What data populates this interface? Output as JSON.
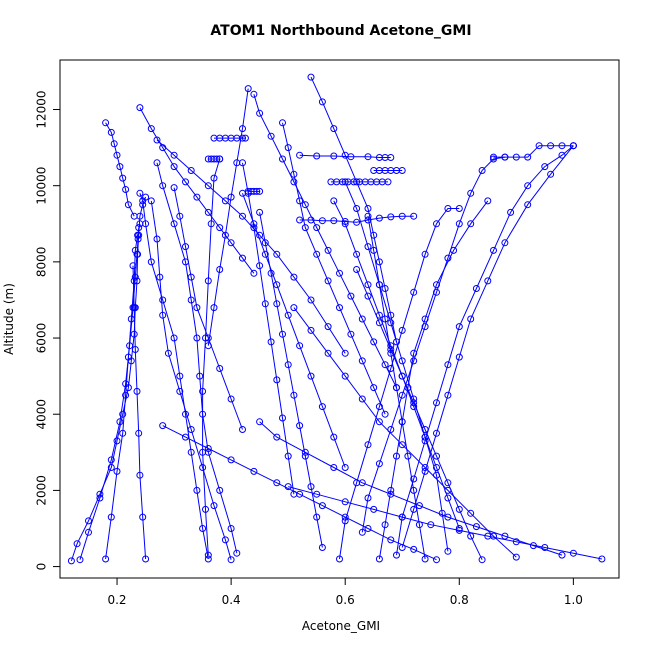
{
  "chart_data": {
    "type": "line",
    "title": "ATOM1 Northbound Acetone_GMI",
    "xlabel": "Acetone_GMI",
    "ylabel": "Altitude (m)",
    "xlim": [
      0.1,
      1.08
    ],
    "ylim": [
      -300,
      13300
    ],
    "x_ticks": [
      "0.2",
      "0.4",
      "0.6",
      "0.8",
      "1.0"
    ],
    "x_tick_values": [
      0.2,
      0.4,
      0.6,
      0.8,
      1.0
    ],
    "y_ticks": [
      "0",
      "2000",
      "4000",
      "6000",
      "8000",
      "10000",
      "12000"
    ],
    "y_tick_values": [
      0,
      2000,
      4000,
      6000,
      8000,
      10000,
      12000
    ],
    "line_color": "#0000ff",
    "marker": "open-circle",
    "grid": false,
    "legend": "none",
    "series": [
      {
        "x": [
          0.12,
          0.13,
          0.15,
          0.17,
          0.19,
          0.2,
          0.21,
          0.22,
          0.225,
          0.23,
          0.232,
          0.235,
          0.236,
          0.238,
          0.24,
          0.245,
          0.25
        ],
        "y": [
          150,
          600,
          1200,
          1900,
          2600,
          3300,
          4000,
          4700,
          5400,
          6100,
          6800,
          7500,
          8200,
          8700,
          9200,
          9500,
          9700
        ]
      },
      {
        "x": [
          0.135,
          0.15,
          0.17,
          0.19,
          0.205,
          0.215,
          0.222,
          0.228,
          0.232,
          0.235,
          0.237,
          0.238
        ],
        "y": [
          180,
          900,
          1800,
          2800,
          3800,
          4800,
          5800,
          6800,
          7600,
          8200,
          8600,
          8900
        ]
      },
      {
        "x": [
          0.18,
          0.19,
          0.2,
          0.21,
          0.215,
          0.22,
          0.225,
          0.23,
          0.232,
          0.236,
          0.24
        ],
        "y": [
          200,
          1300,
          2500,
          3500,
          4500,
          5500,
          6500,
          7500,
          8300,
          8700,
          9000
        ]
      },
      {
        "x": [
          0.18,
          0.19,
          0.195,
          0.2,
          0.205,
          0.21,
          0.215,
          0.22,
          0.23
        ],
        "y": [
          11650,
          11400,
          11100,
          10800,
          10500,
          10200,
          9900,
          9500,
          9200
        ]
      },
      {
        "x": [
          0.25,
          0.245,
          0.24,
          0.238,
          0.235,
          0.232,
          0.23,
          0.228
        ],
        "y": [
          200,
          1300,
          2400,
          3500,
          4600,
          5700,
          6800,
          7900
        ]
      },
      {
        "x": [
          0.36,
          0.35,
          0.34,
          0.33,
          0.32,
          0.31,
          0.3,
          0.28,
          0.26,
          0.25,
          0.245,
          0.24
        ],
        "y": [
          200,
          1000,
          2000,
          3000,
          4000,
          5000,
          6000,
          7000,
          8000,
          9000,
          9600,
          9800
        ]
      },
      {
        "x": [
          0.4,
          0.39,
          0.37,
          0.35,
          0.33,
          0.31,
          0.29,
          0.28,
          0.275,
          0.27,
          0.26
        ],
        "y": [
          180,
          700,
          1600,
          2600,
          3600,
          4600,
          5600,
          6600,
          7600,
          8600,
          9600
        ]
      },
      {
        "x": [
          0.41,
          0.4,
          0.38,
          0.36,
          0.35,
          0.345,
          0.34,
          0.33,
          0.32,
          0.3,
          0.28,
          0.27
        ],
        "y": [
          350,
          1000,
          2000,
          3000,
          4000,
          5000,
          6000,
          7000,
          8000,
          9000,
          10000,
          10600
        ]
      },
      {
        "x": [
          0.36,
          0.355,
          0.35,
          0.35,
          0.355,
          0.36,
          0.365,
          0.37,
          0.38
        ],
        "y": [
          300,
          1500,
          3000,
          4600,
          6000,
          7500,
          9000,
          10200,
          10700
        ]
      },
      {
        "x": [
          0.24,
          0.26,
          0.28,
          0.3,
          0.32,
          0.34,
          0.36,
          0.38,
          0.4,
          0.42,
          0.44
        ],
        "y": [
          12050,
          11500,
          11000,
          10500,
          10100,
          9700,
          9300,
          8900,
          8500,
          8100,
          7700
        ]
      },
      {
        "x": [
          0.27,
          0.3,
          0.33,
          0.36,
          0.39,
          0.42,
          0.45,
          0.48,
          0.51,
          0.54,
          0.57,
          0.6
        ],
        "y": [
          11200,
          10800,
          10400,
          10000,
          9600,
          9200,
          8700,
          8200,
          7600,
          7000,
          6300,
          5600
        ]
      },
      {
        "x": [
          0.43,
          0.42,
          0.41,
          0.4,
          0.39,
          0.38,
          0.37,
          0.36
        ],
        "y": [
          12550,
          11500,
          10600,
          9700,
          8700,
          7800,
          6800,
          5800
        ]
      },
      {
        "x": [
          0.44,
          0.45,
          0.47,
          0.49,
          0.51,
          0.53,
          0.55,
          0.57,
          0.59,
          0.61,
          0.63,
          0.65,
          0.67,
          0.69
        ],
        "y": [
          12400,
          11900,
          11300,
          10700,
          10100,
          9500,
          8900,
          8300,
          7700,
          7100,
          6500,
          5900,
          5300,
          4700
        ]
      },
      {
        "x": [
          0.49,
          0.5,
          0.51,
          0.52,
          0.53,
          0.55,
          0.57,
          0.59,
          0.61,
          0.63,
          0.65,
          0.67
        ],
        "y": [
          11650,
          11000,
          10300,
          9600,
          8900,
          8200,
          7500,
          6800,
          6100,
          5400,
          4700,
          4000
        ]
      },
      {
        "x": [
          0.54,
          0.56,
          0.58,
          0.6,
          0.62,
          0.64,
          0.65,
          0.66,
          0.67,
          0.68,
          0.69
        ],
        "y": [
          12850,
          12200,
          11500,
          10800,
          10100,
          9400,
          8700,
          8000,
          7300,
          6600,
          5900
        ]
      },
      {
        "x": [
          0.52,
          0.55,
          0.58,
          0.61,
          0.64,
          0.66,
          0.67,
          0.68
        ],
        "y": [
          10800,
          10780,
          10780,
          10760,
          10760,
          10740,
          10740,
          10740
        ]
      },
      {
        "x": [
          0.52,
          0.54,
          0.56,
          0.58,
          0.6,
          0.62,
          0.64,
          0.66,
          0.68,
          0.7,
          0.72
        ],
        "y": [
          9100,
          9100,
          9080,
          9080,
          9060,
          9040,
          9100,
          9150,
          9180,
          9200,
          9200
        ]
      },
      {
        "x": [
          0.7,
          0.72,
          0.74,
          0.76,
          0.78,
          0.8,
          0.82,
          0.85,
          0.88,
          0.92,
          0.96,
          1.0
        ],
        "y": [
          500,
          1500,
          2500,
          3500,
          4500,
          5500,
          6500,
          7500,
          8500,
          9500,
          10300,
          11050
        ]
      },
      {
        "x": [
          0.69,
          0.7,
          0.72,
          0.74,
          0.76,
          0.78,
          0.8,
          0.83,
          0.86,
          0.89,
          0.92,
          0.95,
          0.98,
          1.0
        ],
        "y": [
          300,
          1300,
          2300,
          3300,
          4300,
          5300,
          6300,
          7300,
          8300,
          9300,
          10000,
          10500,
          10800,
          11050
        ]
      },
      {
        "x": [
          0.63,
          0.64,
          0.66,
          0.68,
          0.7,
          0.72,
          0.74,
          0.76,
          0.78,
          0.8,
          0.82,
          0.84,
          0.86,
          0.88
        ],
        "y": [
          900,
          1800,
          2700,
          3600,
          4500,
          5400,
          6300,
          7200,
          8100,
          9000,
          9800,
          10400,
          10700,
          10750
        ]
      },
      {
        "x": [
          0.66,
          0.67,
          0.68,
          0.69,
          0.7,
          0.71,
          0.72,
          0.74,
          0.76,
          0.79,
          0.82,
          0.85
        ],
        "y": [
          200,
          1100,
          2000,
          2900,
          3800,
          4700,
          5600,
          6500,
          7400,
          8300,
          9000,
          9600
        ]
      },
      {
        "x": [
          0.59,
          0.6,
          0.62,
          0.64,
          0.66,
          0.68,
          0.7,
          0.72,
          0.74,
          0.76,
          0.78,
          0.8
        ],
        "y": [
          200,
          1200,
          2200,
          3200,
          4200,
          5200,
          6200,
          7200,
          8200,
          9000,
          9400,
          9400
        ]
      },
      {
        "x": [
          0.74,
          0.73,
          0.72,
          0.71,
          0.7,
          0.69,
          0.68,
          0.67,
          0.66,
          0.65,
          0.64
        ],
        "y": [
          200,
          1100,
          2000,
          2900,
          3800,
          4700,
          5600,
          6500,
          7400,
          8300,
          9200
        ]
      },
      {
        "x": [
          0.78,
          0.77,
          0.76,
          0.74,
          0.72,
          0.7,
          0.68,
          0.66,
          0.64,
          0.62,
          0.6
        ],
        "y": [
          400,
          1400,
          2400,
          3400,
          4400,
          5400,
          6400,
          7400,
          8400,
          9400,
          10100
        ]
      },
      {
        "x": [
          0.8,
          0.78,
          0.76,
          0.74,
          0.72,
          0.7,
          0.68,
          0.66,
          0.64,
          0.62,
          0.6,
          0.58
        ],
        "y": [
          1000,
          1800,
          2600,
          3400,
          4200,
          5000,
          5800,
          6600,
          7400,
          8200,
          9000,
          9600
        ]
      },
      {
        "x": [
          0.84,
          0.82,
          0.8,
          0.78,
          0.76,
          0.74,
          0.72,
          0.7,
          0.68,
          0.66,
          0.64,
          0.62
        ],
        "y": [
          180,
          800,
          1500,
          2200,
          2900,
          3600,
          4300,
          5000,
          5700,
          6400,
          7100,
          7800
        ]
      },
      {
        "x": [
          0.9,
          0.86,
          0.82,
          0.78,
          0.74,
          0.7,
          0.66,
          0.63,
          0.6,
          0.57,
          0.54,
          0.51
        ],
        "y": [
          250,
          800,
          1400,
          2000,
          2600,
          3200,
          3800,
          4400,
          5000,
          5600,
          6200,
          6800
        ]
      },
      {
        "x": [
          0.98,
          0.93,
          0.88,
          0.83,
          0.78,
          0.73,
          0.68,
          0.63,
          0.58,
          0.53,
          0.48,
          0.45
        ],
        "y": [
          300,
          550,
          800,
          1050,
          1300,
          1600,
          1900,
          2200,
          2600,
          3000,
          3400,
          3800
        ]
      },
      {
        "x": [
          1.05,
          1.0,
          0.95,
          0.9,
          0.85,
          0.8,
          0.75,
          0.7,
          0.65,
          0.6,
          0.55,
          0.5
        ],
        "y": [
          200,
          350,
          500,
          650,
          800,
          950,
          1100,
          1300,
          1500,
          1700,
          1900,
          2100
        ]
      },
      {
        "x": [
          0.76,
          0.72,
          0.68,
          0.64,
          0.6,
          0.56,
          0.52,
          0.48,
          0.44,
          0.4,
          0.36,
          0.32,
          0.28
        ],
        "y": [
          180,
          450,
          700,
          1000,
          1300,
          1600,
          1900,
          2200,
          2500,
          2800,
          3100,
          3400,
          3700
        ]
      },
      {
        "x": [
          0.56,
          0.55,
          0.54,
          0.53,
          0.52,
          0.51,
          0.5,
          0.49,
          0.48,
          0.47,
          0.46,
          0.45
        ],
        "y": [
          500,
          1300,
          2100,
          2900,
          3700,
          4500,
          5300,
          6100,
          6900,
          7700,
          8500,
          9300
        ]
      },
      {
        "x": [
          0.51,
          0.5,
          0.49,
          0.48,
          0.47,
          0.46,
          0.45,
          0.44,
          0.43,
          0.42
        ],
        "y": [
          1900,
          2900,
          3900,
          4900,
          5900,
          6900,
          7900,
          8900,
          9800,
          10600
        ]
      },
      {
        "x": [
          0.6,
          0.58,
          0.56,
          0.54,
          0.52,
          0.5,
          0.48,
          0.46,
          0.44,
          0.42
        ],
        "y": [
          2600,
          3400,
          4200,
          5000,
          5800,
          6600,
          7400,
          8200,
          9000,
          9800
        ]
      },
      {
        "x": [
          0.3,
          0.31,
          0.32,
          0.33,
          0.34,
          0.36,
          0.38,
          0.4,
          0.42
        ],
        "y": [
          9950,
          9200,
          8400,
          7600,
          6800,
          6000,
          5200,
          4400,
          3600
        ]
      },
      {
        "x": [
          0.37,
          0.38,
          0.39,
          0.4,
          0.41,
          0.42,
          0.425
        ],
        "y": [
          11250,
          11250,
          11250,
          11250,
          11250,
          11250,
          11250
        ]
      },
      {
        "x": [
          0.575,
          0.585,
          0.595,
          0.605,
          0.615,
          0.625,
          0.635,
          0.645,
          0.655,
          0.665,
          0.675
        ],
        "y": [
          10100,
          10100,
          10100,
          10100,
          10100,
          10100,
          10100,
          10100,
          10100,
          10100,
          10100
        ]
      },
      {
        "x": [
          0.65,
          0.66,
          0.67,
          0.68,
          0.69,
          0.7
        ],
        "y": [
          10400,
          10400,
          10400,
          10400,
          10400,
          10400
        ]
      },
      {
        "x": [
          0.86,
          0.88,
          0.9,
          0.92,
          0.94,
          0.96,
          0.98,
          1.0
        ],
        "y": [
          10750,
          10750,
          10750,
          10750,
          11050,
          11050,
          11050,
          11050
        ]
      },
      {
        "x": [
          0.43,
          0.435,
          0.44,
          0.445,
          0.45
        ],
        "y": [
          9850,
          9850,
          9850,
          9850,
          9850
        ]
      },
      {
        "x": [
          0.36,
          0.365,
          0.37,
          0.375,
          0.38
        ],
        "y": [
          10700,
          10700,
          10700,
          10700,
          10700
        ]
      }
    ]
  }
}
